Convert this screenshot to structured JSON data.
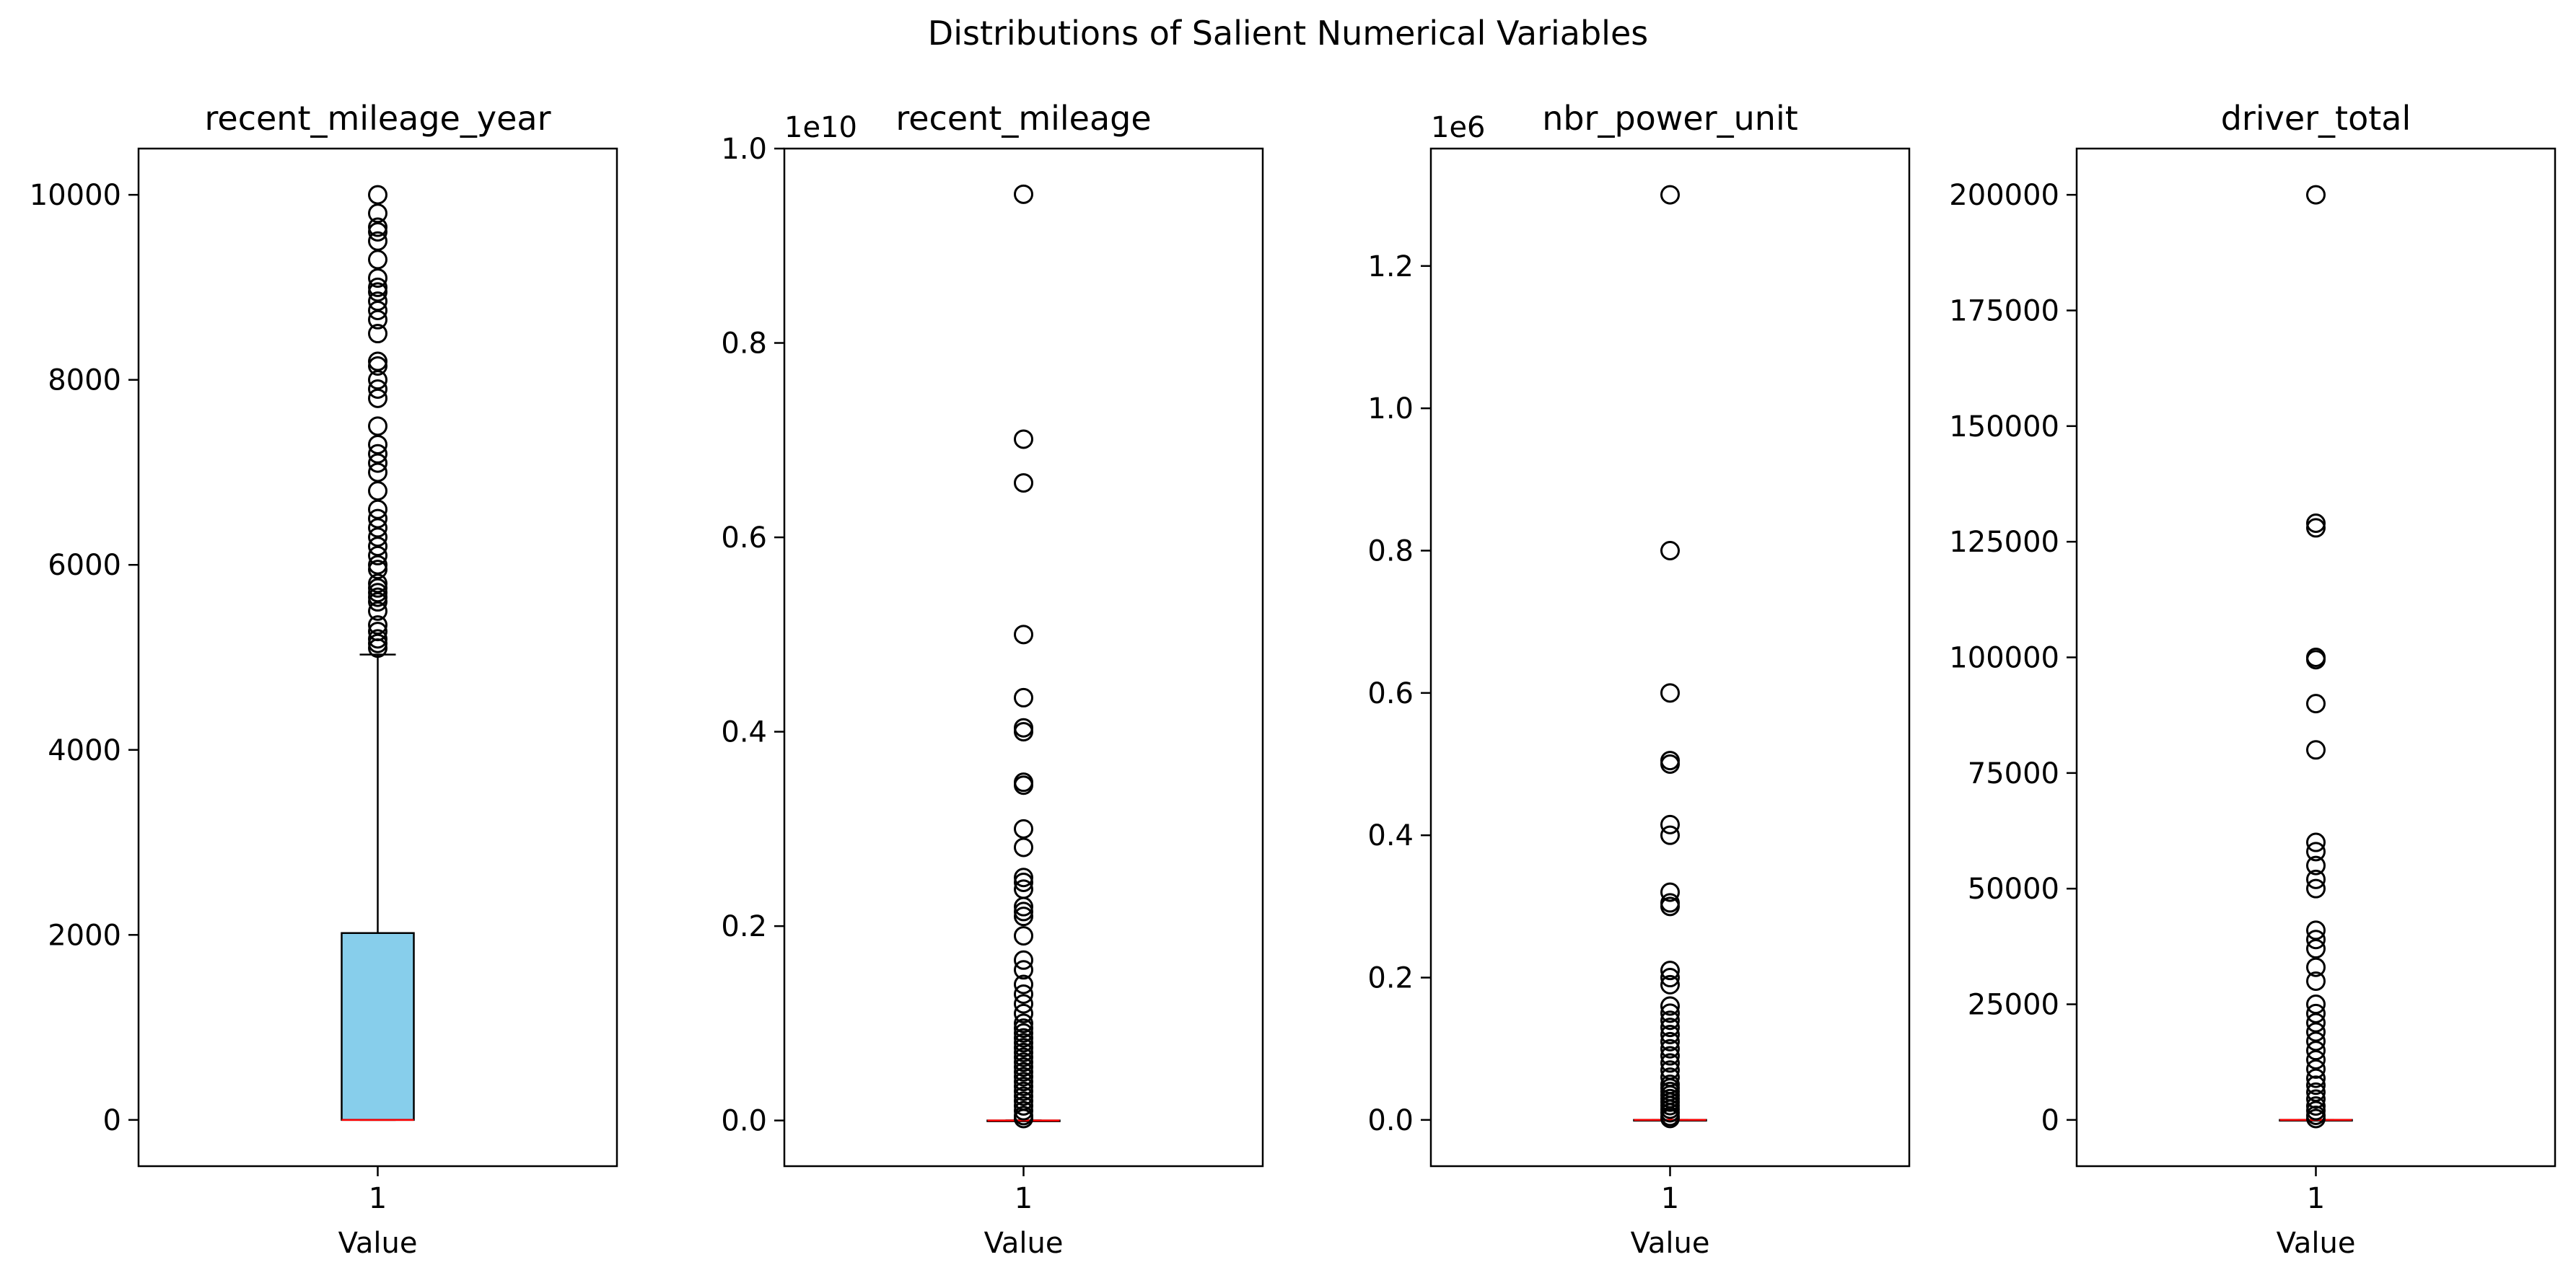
{
  "figure": {
    "title": "Distributions of Salient Numerical Variables"
  },
  "colors": {
    "box_fill": "#87ceeb",
    "median": "#ff0000",
    "stroke": "#000000",
    "background": "#ffffff"
  },
  "chart_data": [
    {
      "type": "box",
      "title": "recent_mileage_year",
      "xlabel": "Value",
      "categories": [
        "1"
      ],
      "offset_label": "",
      "ylim": [
        -500,
        10500
      ],
      "yticks": [
        0,
        2000,
        4000,
        6000,
        8000,
        10000
      ],
      "ytick_labels": [
        "0",
        "2000",
        "4000",
        "6000",
        "8000",
        "10000"
      ],
      "box": {
        "whisker_low": 0,
        "q1": 0,
        "median": 0,
        "q3": 2020,
        "whisker_high": 5030
      },
      "fliers": [
        5100,
        5150,
        5200,
        5280,
        5350,
        5500,
        5600,
        5650,
        5700,
        5750,
        5800,
        5950,
        6000,
        6100,
        6200,
        6300,
        6400,
        6500,
        6600,
        6800,
        7000,
        7100,
        7200,
        7300,
        7500,
        7800,
        7900,
        8000,
        8150,
        8200,
        8500,
        8650,
        8750,
        8850,
        8950,
        9000,
        9100,
        9300,
        9500,
        9600,
        9650,
        9800,
        10000
      ]
    },
    {
      "type": "box",
      "title": "recent_mileage",
      "xlabel": "Value",
      "categories": [
        "1"
      ],
      "offset_label": "1e10",
      "ylim": [
        -0.047,
        1.0
      ],
      "yticks": [
        0.0,
        0.2,
        0.4,
        0.6,
        0.8,
        1.0
      ],
      "ytick_labels": [
        "0.0",
        "0.2",
        "0.4",
        "0.6",
        "0.8",
        "1.0"
      ],
      "box": {
        "whisker_low": 0,
        "q1": 0,
        "median": 0,
        "q3": 0,
        "whisker_high": 0
      },
      "fliers": [
        0.953,
        0.701,
        0.656,
        0.5,
        0.435,
        0.404,
        0.4,
        0.348,
        0.345,
        0.3,
        0.281,
        0.25,
        0.245,
        0.238,
        0.22,
        0.215,
        0.21,
        0.19,
        0.165,
        0.155,
        0.14,
        0.13,
        0.12,
        0.11,
        0.1,
        0.095,
        0.09,
        0.085,
        0.08,
        0.075,
        0.07,
        0.065,
        0.06,
        0.055,
        0.05,
        0.045,
        0.04,
        0.035,
        0.03,
        0.025,
        0.02,
        0.015,
        0.01,
        0.005,
        0.002
      ]
    },
    {
      "type": "box",
      "title": "nbr_power_unit",
      "xlabel": "Value",
      "categories": [
        "1"
      ],
      "offset_label": "1e6",
      "ylim": [
        -0.065,
        1.365
      ],
      "yticks": [
        0.0,
        0.2,
        0.4,
        0.6,
        0.8,
        1.0,
        1.2
      ],
      "ytick_labels": [
        "0.0",
        "0.2",
        "0.4",
        "0.6",
        "0.8",
        "1.0",
        "1.2"
      ],
      "box": {
        "whisker_low": 0,
        "q1": 0,
        "median": 0,
        "q3": 0,
        "whisker_high": 0
      },
      "fliers": [
        1.3,
        0.8,
        0.6,
        0.505,
        0.5,
        0.415,
        0.4,
        0.32,
        0.305,
        0.3,
        0.21,
        0.2,
        0.19,
        0.16,
        0.15,
        0.14,
        0.13,
        0.12,
        0.11,
        0.1,
        0.09,
        0.08,
        0.07,
        0.06,
        0.05,
        0.045,
        0.04,
        0.035,
        0.03,
        0.025,
        0.02,
        0.015,
        0.01,
        0.005,
        0.002
      ]
    },
    {
      "type": "box",
      "title": "driver_total",
      "xlabel": "Value",
      "categories": [
        "1"
      ],
      "offset_label": "",
      "ylim": [
        -10000,
        210000
      ],
      "yticks": [
        0,
        25000,
        50000,
        75000,
        100000,
        125000,
        150000,
        175000,
        200000
      ],
      "ytick_labels": [
        "0",
        "25000",
        "50000",
        "75000",
        "100000",
        "125000",
        "150000",
        "175000",
        "200000"
      ],
      "box": {
        "whisker_low": 0,
        "q1": 0,
        "median": 0,
        "q3": 0,
        "whisker_high": 0
      },
      "fliers": [
        200000,
        129000,
        128000,
        100000,
        99500,
        90000,
        80000,
        60000,
        58000,
        55000,
        52000,
        50000,
        41000,
        39000,
        37000,
        33000,
        30000,
        25000,
        23000,
        21000,
        19000,
        17000,
        15000,
        13000,
        11000,
        9000,
        7500,
        6000,
        4500,
        3000,
        2000,
        1000,
        300
      ]
    }
  ]
}
